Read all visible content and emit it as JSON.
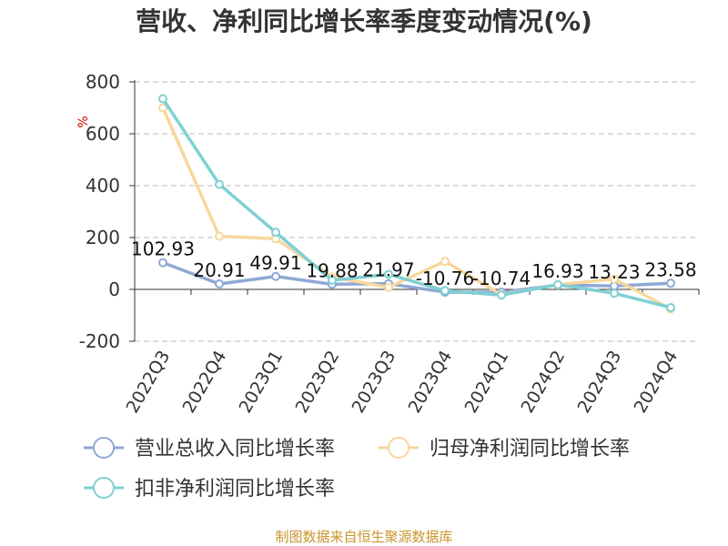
{
  "chart_data": {
    "type": "line",
    "title": "营收、净利同比增长率季度变动情况(%)",
    "unit_label": "%",
    "categories": [
      "2022Q3",
      "2022Q4",
      "2023Q1",
      "2023Q2",
      "2023Q3",
      "2023Q4",
      "2024Q1",
      "2024Q2",
      "2024Q3",
      "2024Q4"
    ],
    "ylim": [
      -200,
      800
    ],
    "yticks": [
      -200,
      0,
      200,
      400,
      600,
      800
    ],
    "ytick_labels": [
      "-200",
      "0",
      "200",
      "400",
      "600",
      "800"
    ],
    "grid": true,
    "legend_position": "bottom",
    "series": [
      {
        "name": "营业总收入同比增长率",
        "color": "#8fa9d6",
        "values": [
          102.93,
          20.91,
          49.91,
          19.88,
          21.97,
          -10.76,
          -10.74,
          16.93,
          13.23,
          23.58
        ],
        "labels": [
          "102.93",
          "20.91",
          "49.91",
          "19.88",
          "21.97",
          "-10.76",
          "-10.74",
          "16.93",
          "13.23",
          "23.58"
        ]
      },
      {
        "name": "归母净利润同比增长率",
        "color": "#f7d79c",
        "values": [
          700,
          205,
          195,
          48,
          8,
          108,
          -20,
          18,
          40,
          -75
        ]
      },
      {
        "name": "扣非净利润同比增长率",
        "color": "#7fd0d4",
        "values": [
          735,
          405,
          220,
          35,
          58,
          -5,
          -22,
          18,
          -15,
          -70
        ]
      }
    ]
  },
  "source": "制图数据来自恒生聚源数据库"
}
